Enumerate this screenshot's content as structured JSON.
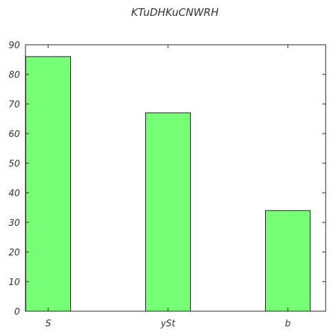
{
  "chart_data": {
    "type": "bar",
    "title": "KTuDHKuCNWRH",
    "xlabel": "",
    "ylabel": "",
    "categories": [
      "S",
      "ySt",
      "b"
    ],
    "values": [
      86,
      67,
      34
    ],
    "ylim": [
      0,
      90
    ],
    "yticks": [
      0,
      10,
      20,
      30,
      40,
      50,
      60,
      70,
      80,
      90
    ],
    "grid": false,
    "bar_color": "#77ff77"
  }
}
